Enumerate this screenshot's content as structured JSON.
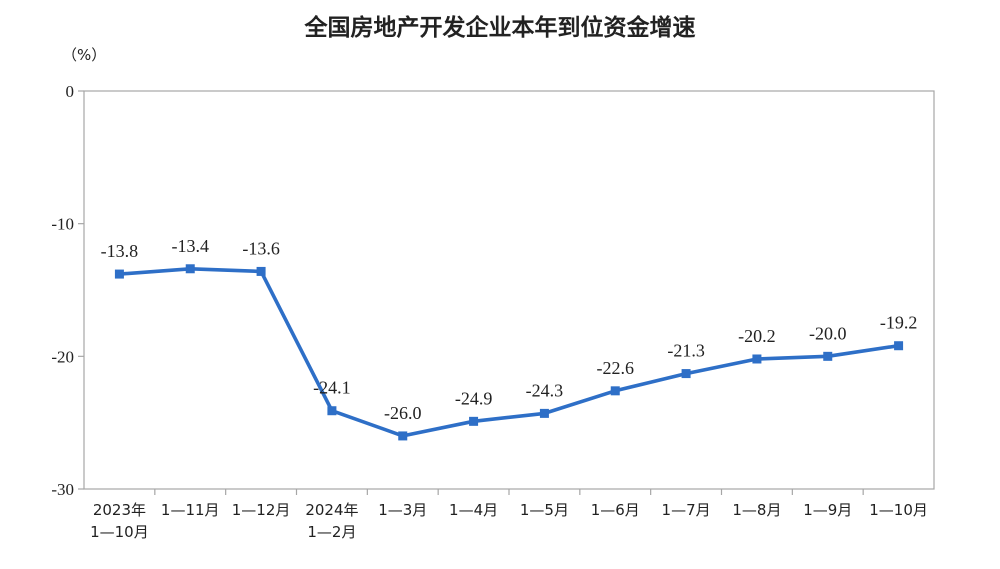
{
  "chart_data": {
    "type": "line",
    "title": "全国房地产开发企业本年到位资金增速",
    "ylabel": "（%）",
    "xlabel": "",
    "ylim": [
      -30,
      0
    ],
    "yticks": [
      0,
      -10,
      -20,
      -30
    ],
    "categories": [
      [
        "2023年",
        "1—10月"
      ],
      [
        "1—11月"
      ],
      [
        "1—12月"
      ],
      [
        "2024年",
        "1—2月"
      ],
      [
        "1—3月"
      ],
      [
        "1—4月"
      ],
      [
        "1—5月"
      ],
      [
        "1—6月"
      ],
      [
        "1—7月"
      ],
      [
        "1—8月"
      ],
      [
        "1—9月"
      ],
      [
        "1—10月"
      ]
    ],
    "series": [
      {
        "values": [
          -13.8,
          -13.4,
          -13.6,
          -24.1,
          -26.0,
          -24.9,
          -24.3,
          -22.6,
          -21.3,
          -20.2,
          -20.0,
          -19.2
        ],
        "labels": [
          "-13.8",
          "-13.4",
          "-13.6",
          "-24.1",
          "-26.0",
          "-24.9",
          "-24.3",
          "-22.6",
          "-21.3",
          "-20.2",
          "-20.0",
          "-19.2"
        ],
        "color": "#2e6fc7"
      }
    ],
    "grid": false,
    "legend": "none"
  }
}
